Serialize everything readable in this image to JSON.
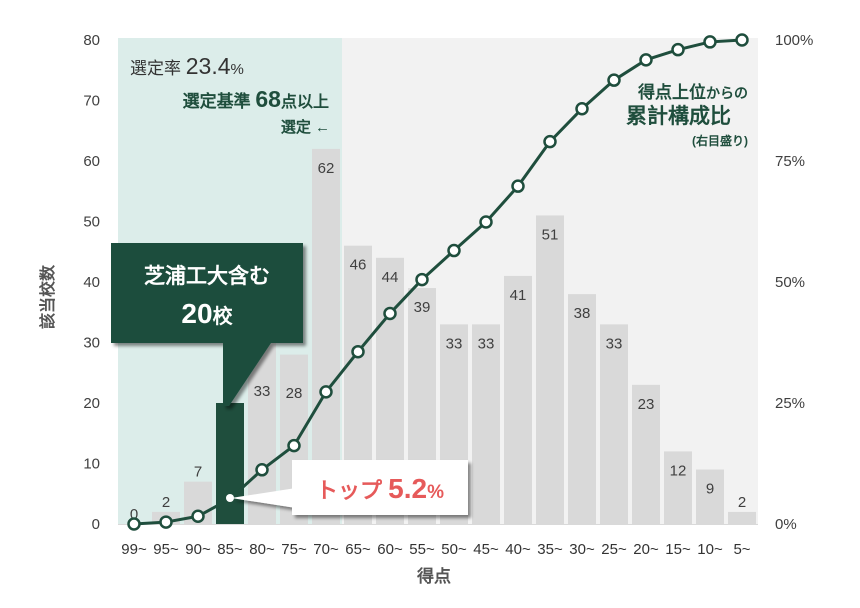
{
  "colors": {
    "accent": "#1f4e3d",
    "bar": "#d9d9d9",
    "plot_bg": "#f2f2f2",
    "selected_region": "#dcedea",
    "callout_red": "#e65a5a",
    "text": "#404040"
  },
  "chart_data": {
    "type": "bar",
    "title": "",
    "xlabel": "得点",
    "ylabel": "該当校数",
    "y2label": "得点上位からの累計構成比（右目盛り）",
    "categories": [
      "99~",
      "95~",
      "90~",
      "85~",
      "80~",
      "75~",
      "70~",
      "65~",
      "60~",
      "55~",
      "50~",
      "45~",
      "40~",
      "35~",
      "30~",
      "25~",
      "20~",
      "15~",
      "10~",
      "5~"
    ],
    "series": [
      {
        "name": "該当校数",
        "type": "bar",
        "axis": "left",
        "values": [
          0,
          2,
          7,
          20,
          33,
          28,
          62,
          46,
          44,
          39,
          33,
          33,
          41,
          51,
          38,
          33,
          23,
          12,
          9,
          2
        ]
      },
      {
        "name": "得点上位からの累計構成比",
        "type": "line",
        "axis": "right",
        "unit": "%",
        "values": [
          0,
          0.4,
          1.6,
          5.2,
          11.2,
          16.2,
          27.3,
          35.6,
          43.5,
          50.5,
          56.5,
          62.4,
          69.8,
          79.0,
          85.8,
          91.7,
          95.9,
          98.0,
          99.6,
          100
        ]
      }
    ],
    "ylim": [
      0,
      80
    ],
    "yticks": [
      "0",
      "10",
      "20",
      "30",
      "40",
      "50",
      "60",
      "70",
      "80"
    ],
    "y2lim": [
      0,
      100
    ],
    "y2ticks": [
      "0%",
      "25%",
      "50%",
      "75%",
      "100%"
    ],
    "highlight_bar_index": 3,
    "selected_region_categories": [
      "99~",
      "95~",
      "90~",
      "85~",
      "80~",
      "75~",
      "70~"
    ],
    "label_baseline_overrides": {
      "4": 396,
      "5": 398
    },
    "grid": false,
    "legend": "none"
  },
  "annotations": {
    "selection_rate": {
      "label": "選定率 ",
      "value": "23.4",
      "unit": "%"
    },
    "criterion": {
      "label": "選定基準 ",
      "value": "68",
      "unit": "点以上"
    },
    "selected_arrow": "選定 ←",
    "cumulative": {
      "line1_a": "得点上位",
      "line1_b": "からの",
      "line2": "累計構成比",
      "line3": "(右目盛り)"
    },
    "school_callout": {
      "line1": "芝浦工大含む",
      "count": "20",
      "unit": "校"
    },
    "top_callout": {
      "label": "トップ ",
      "value": "5.2",
      "unit": "%"
    }
  }
}
